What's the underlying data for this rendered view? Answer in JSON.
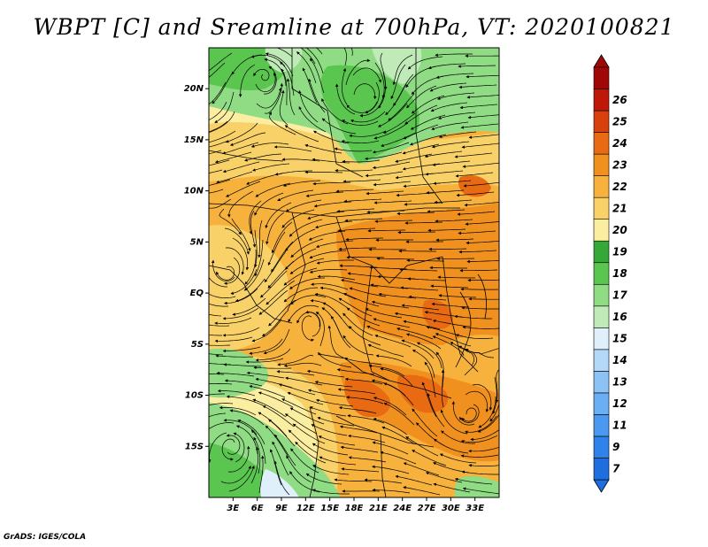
{
  "title": "WBPT [C] and Sreamline at 700hPa, VT: 2020100821",
  "credit": "GrADS: IGES/COLA",
  "map": {
    "variable": "Wet-bulb potential temperature",
    "units": "C",
    "level": "700hPa",
    "valid_time": "2020100821",
    "lon_range": [
      0,
      36
    ],
    "lat_range": [
      -20,
      24
    ],
    "lat_ticks": [
      {
        "value": 20,
        "label": "20N"
      },
      {
        "value": 15,
        "label": "15N"
      },
      {
        "value": 10,
        "label": "10N"
      },
      {
        "value": 5,
        "label": "5N"
      },
      {
        "value": 0,
        "label": "EQ"
      },
      {
        "value": -5,
        "label": "5S"
      },
      {
        "value": -10,
        "label": "10S"
      },
      {
        "value": -15,
        "label": "15S"
      }
    ],
    "lon_ticks": [
      {
        "value": 3,
        "label": "3E"
      },
      {
        "value": 6,
        "label": "6E"
      },
      {
        "value": 9,
        "label": "9E"
      },
      {
        "value": 12,
        "label": "12E"
      },
      {
        "value": 15,
        "label": "15E"
      },
      {
        "value": 18,
        "label": "18E"
      },
      {
        "value": 21,
        "label": "21E"
      },
      {
        "value": 24,
        "label": "24E"
      },
      {
        "value": 27,
        "label": "27E"
      },
      {
        "value": 30,
        "label": "30E"
      },
      {
        "value": 33,
        "label": "33E"
      }
    ]
  },
  "colorbar": {
    "labels": [
      "7",
      "9",
      "11",
      "12",
      "13",
      "14",
      "15",
      "16",
      "17",
      "18",
      "19",
      "20",
      "21",
      "22",
      "23",
      "24",
      "25",
      "26"
    ],
    "colors": [
      "#1e6ee0",
      "#2e82ea",
      "#4a98f0",
      "#6aaef4",
      "#8cc2f6",
      "#b4d8f8",
      "#dff0fa",
      "#c0eab8",
      "#90dc84",
      "#5ac650",
      "#36a838",
      "#fbeea0",
      "#f8d268",
      "#f6b23c",
      "#f0901e",
      "#e86a12",
      "#d8400c",
      "#c01808",
      "#a00808"
    ]
  },
  "colors": {
    "warm_background": "#f6b23c",
    "border": "#000000"
  }
}
